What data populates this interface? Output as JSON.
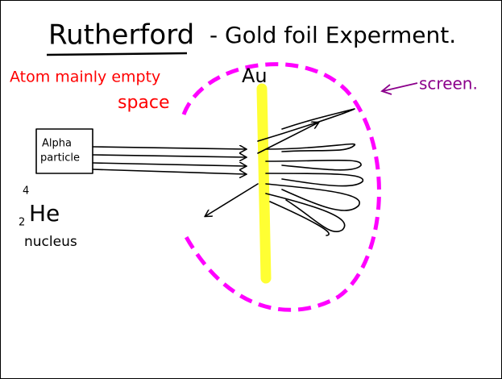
{
  "header": {
    "title": "Rutherford",
    "subtitle": "- Gold foil Experment."
  },
  "note": {
    "lines": [
      "Atom mainly empty",
      "space"
    ]
  },
  "foil_label": "Au",
  "screen_label": "screen.",
  "source": {
    "lines": [
      "Alpha",
      "particle"
    ]
  },
  "nucleus": {
    "mass_number": "4",
    "atomic_number": "2",
    "symbol": "He",
    "caption": "nucleus"
  }
}
